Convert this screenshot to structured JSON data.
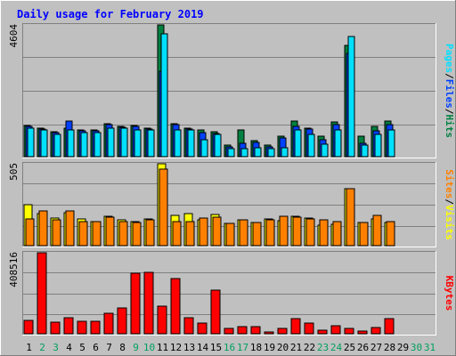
{
  "colors": {
    "background": "#c0c0c0",
    "plot_area": "#c0c0c0",
    "title_text": "#0000ff",
    "hits": "#008040",
    "files": "#0040ff",
    "pages": "#00e0ff",
    "visits": "#ffff00",
    "sites": "#ff8000",
    "kbytes": "#ff0000",
    "weekday_label": "#000000",
    "weekend_label": "#00a060"
  },
  "chart_data": {
    "type": "bar",
    "title": "Daily usage for February 2019",
    "x_tick_labels": [
      "1",
      "2",
      "3",
      "4",
      "5",
      "6",
      "7",
      "8",
      "9",
      "10",
      "11",
      "12",
      "13",
      "14",
      "15",
      "16",
      "17",
      "18",
      "19",
      "20",
      "21",
      "22",
      "23",
      "24",
      "25",
      "26",
      "27",
      "28",
      "29",
      "30",
      "31"
    ],
    "weekend_days": [
      2,
      3,
      9,
      10,
      16,
      17,
      23,
      24,
      30,
      31
    ],
    "days_with_data": 28,
    "panels": [
      {
        "name": "top",
        "ymax_label": "4604",
        "ymax": 4604,
        "legend_parts": [
          "Pages",
          "/",
          "Files",
          "/",
          "Hits"
        ],
        "series": [
          {
            "name": "Hits",
            "values": [
              1090,
              1010,
              860,
              1010,
              930,
              930,
              1150,
              1070,
              1090,
              1010,
              4604,
              1150,
              1010,
              930,
              860,
              390,
              930,
              550,
              390,
              700,
              1250,
              1010,
              700,
              1200,
              3900,
              700,
              1050,
              1250
            ]
          },
          {
            "name": "Files",
            "values": [
              1050,
              970,
              830,
              1250,
              890,
              890,
              1110,
              1030,
              1050,
              970,
              3000,
              1110,
              970,
              850,
              820,
              350,
              480,
              510,
              350,
              660,
              1050,
              970,
              580,
              1130,
              3600,
              460,
              900,
              1130
            ]
          },
          {
            "name": "Pages",
            "values": [
              1010,
              930,
              780,
              930,
              850,
              850,
              1010,
              990,
              930,
              930,
              4300,
              930,
              930,
              590,
              780,
              270,
              270,
              310,
              270,
              310,
              930,
              780,
              430,
              930,
              4200,
              390,
              780,
              930
            ]
          }
        ]
      },
      {
        "name": "middle",
        "ymax_label": "505",
        "ymax": 505,
        "legend_parts": [
          "Sites",
          "/",
          "Visits"
        ],
        "series": [
          {
            "name": "Visits",
            "values": [
              250,
              195,
              170,
              205,
              165,
              150,
              180,
              160,
              150,
              165,
              505,
              185,
              195,
              160,
              190,
              135,
              160,
              145,
              165,
              155,
              180,
              170,
              125,
              130,
              350,
              145,
              165,
              145
            ]
          },
          {
            "name": "Sites",
            "values": [
              165,
              215,
              160,
              215,
              150,
              150,
              175,
              150,
              140,
              160,
              470,
              150,
              150,
              170,
              175,
              135,
              160,
              145,
              160,
              180,
              175,
              165,
              160,
              150,
              350,
              140,
              185,
              150
            ]
          }
        ]
      },
      {
        "name": "bottom",
        "ymax_label": "408516",
        "ymax": 408516,
        "legend_parts": [
          "KBytes"
        ],
        "series": [
          {
            "name": "KBytes",
            "values": [
              66000,
              408516,
              60000,
              80000,
              65000,
              65000,
              105000,
              130000,
              305000,
              310000,
              140000,
              280000,
              80000,
              55000,
              220000,
              25000,
              35000,
              35000,
              10000,
              25000,
              75000,
              55000,
              20000,
              40000,
              25000,
              15000,
              30000,
              75000
            ]
          }
        ]
      }
    ]
  }
}
